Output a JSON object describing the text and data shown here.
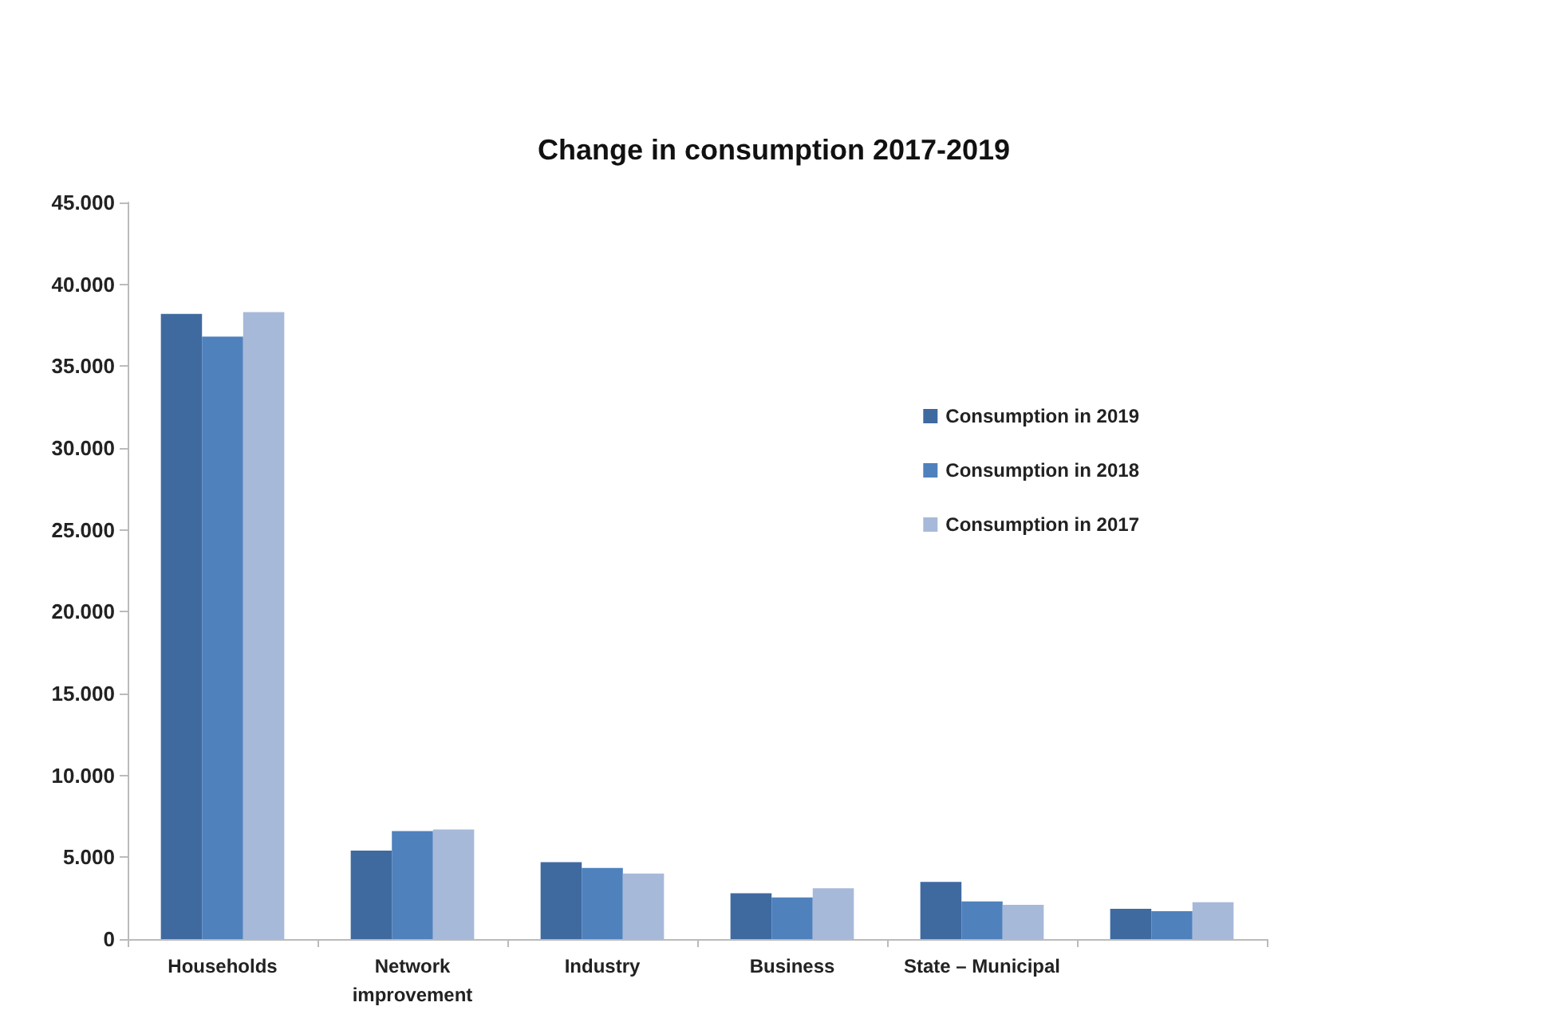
{
  "chart_data": {
    "type": "bar",
    "title": "Change in consumption 2017-2019",
    "categories": [
      "Households",
      "Network\nimprovement",
      "Industry",
      "Business",
      "State – Municipal",
      null
    ],
    "series": [
      {
        "name": "Consumption in 2019",
        "color": "#3f6aa0",
        "values": [
          38200,
          5400,
          4700,
          2800,
          3500,
          1850
        ]
      },
      {
        "name": "Consumption in 2018",
        "color": "#4f81bd",
        "values": [
          36800,
          6600,
          4350,
          2550,
          2300,
          1700
        ]
      },
      {
        "name": "Consumption in 2017",
        "color": "#a7b9d9",
        "values": [
          38300,
          6700,
          4000,
          3100,
          2100,
          2250
        ]
      }
    ],
    "ylim": [
      0,
      45000
    ],
    "yticks": [
      {
        "value": 0,
        "label": "0"
      },
      {
        "value": 5000,
        "label": "5.000"
      },
      {
        "value": 10000,
        "label": "10.000"
      },
      {
        "value": 15000,
        "label": "15.000"
      },
      {
        "value": 20000,
        "label": "20.000"
      },
      {
        "value": 25000,
        "label": "25.000"
      },
      {
        "value": 30000,
        "label": "30.000"
      },
      {
        "value": 35000,
        "label": "35.000"
      },
      {
        "value": 40000,
        "label": "40.000"
      },
      {
        "value": 45000,
        "label": "45.000"
      }
    ],
    "grid": false,
    "legend": "top right"
  }
}
